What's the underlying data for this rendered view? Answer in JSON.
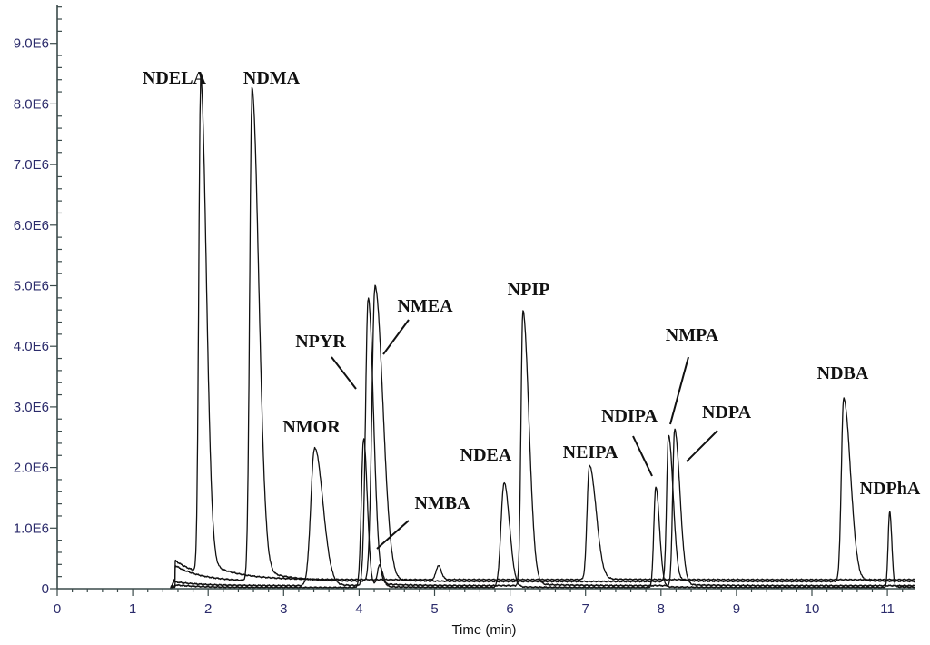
{
  "chart_data": {
    "type": "line",
    "title": "",
    "xlabel": "Time (min)",
    "ylabel": "",
    "xlim": [
      0,
      11.36
    ],
    "ylim": [
      0,
      9600000.0
    ],
    "grid": false,
    "x_ticks": [
      0,
      1,
      2,
      3,
      4,
      5,
      6,
      7,
      8,
      9,
      10,
      11
    ],
    "x_tick_labels": [
      "0",
      "1",
      "2",
      "3",
      "4",
      "5",
      "6",
      "7",
      "8",
      "9",
      "10",
      "11"
    ],
    "x_minor_step": 0.2,
    "y_ticks": [
      0,
      1000000.0,
      2000000.0,
      3000000.0,
      4000000.0,
      5000000.0,
      6000000.0,
      7000000.0,
      8000000.0,
      9000000.0
    ],
    "y_tick_labels": [
      "0",
      "1.0E6",
      "2.0E6",
      "3.0E6",
      "4.0E6",
      "5.0E6",
      "6.0E6",
      "7.0E6",
      "8.0E6",
      "9.0E6"
    ],
    "y_minor_step": 200000,
    "trace_start_min": 1.5,
    "traces": [
      {
        "name": "trace-1",
        "baseline": 150000,
        "start_bump": 300000
      },
      {
        "name": "trace-2",
        "baseline": 120000,
        "start_bump": 250000
      },
      {
        "name": "trace-3",
        "baseline": 50000,
        "start_bump": 60000
      },
      {
        "name": "trace-4",
        "baseline": 20000,
        "start_bump": 40000
      }
    ],
    "peaks": [
      {
        "name": "NDELA",
        "rt": 1.9,
        "height": 7950000,
        "width_min": 0.025,
        "tailing": 3.0,
        "trace": 0
      },
      {
        "name": "NDMA",
        "rt": 2.58,
        "height": 7900000,
        "width_min": 0.03,
        "tailing": 3.0,
        "trace": 1
      },
      {
        "name": "NMOR",
        "rt": 3.41,
        "height": 2260000,
        "width_min": 0.05,
        "tailing": 2.2,
        "trace": 2
      },
      {
        "name": "",
        "rt": 4.06,
        "height": 2440000,
        "width_min": 0.03,
        "tailing": 1.6,
        "trace": 3
      },
      {
        "name": "NPYR",
        "rt": 4.12,
        "height": 4720000,
        "width_min": 0.035,
        "tailing": 2.0,
        "trace": 2
      },
      {
        "name": "NMEA",
        "rt": 4.21,
        "height": 4840000,
        "width_min": 0.04,
        "tailing": 2.6,
        "trace": 1
      },
      {
        "name": "NMBA",
        "rt": 4.27,
        "height": 350000,
        "width_min": 0.03,
        "tailing": 1.5,
        "trace": 3
      },
      {
        "name": "",
        "rt": 5.05,
        "height": 230000,
        "width_min": 0.03,
        "tailing": 1.3,
        "trace": 0
      },
      {
        "name": "NDEA",
        "rt": 5.92,
        "height": 1720000,
        "width_min": 0.04,
        "tailing": 1.8,
        "trace": 3
      },
      {
        "name": "NPIP",
        "rt": 6.17,
        "height": 4500000,
        "width_min": 0.025,
        "tailing": 3.2,
        "trace": 2
      },
      {
        "name": "NEIPA",
        "rt": 7.05,
        "height": 1870000,
        "width_min": 0.03,
        "tailing": 3.0,
        "trace": 0
      },
      {
        "name": "NDIPA",
        "rt": 7.93,
        "height": 1650000,
        "width_min": 0.025,
        "tailing": 2.0,
        "trace": 3
      },
      {
        "name": "NMPA",
        "rt": 8.1,
        "height": 2400000,
        "width_min": 0.025,
        "tailing": 2.4,
        "trace": 1
      },
      {
        "name": "NDPA",
        "rt": 8.18,
        "height": 2560000,
        "width_min": 0.025,
        "tailing": 2.8,
        "trace": 2
      },
      {
        "name": "NDBA",
        "rt": 10.42,
        "height": 3000000,
        "width_min": 0.03,
        "tailing": 3.0,
        "trace": 1
      },
      {
        "name": "NDPhA",
        "rt": 11.03,
        "height": 1250000,
        "width_min": 0.02,
        "tailing": 1.4,
        "trace": 3
      }
    ],
    "annotations": [
      "NDELA",
      "NDMA",
      "NMOR",
      "NPYR",
      "NMEA",
      "NMBA",
      "NDEA",
      "NPIP",
      "NEIPA",
      "NDIPA",
      "NMPA",
      "NDPA",
      "NDBA",
      "NDPhA"
    ]
  }
}
